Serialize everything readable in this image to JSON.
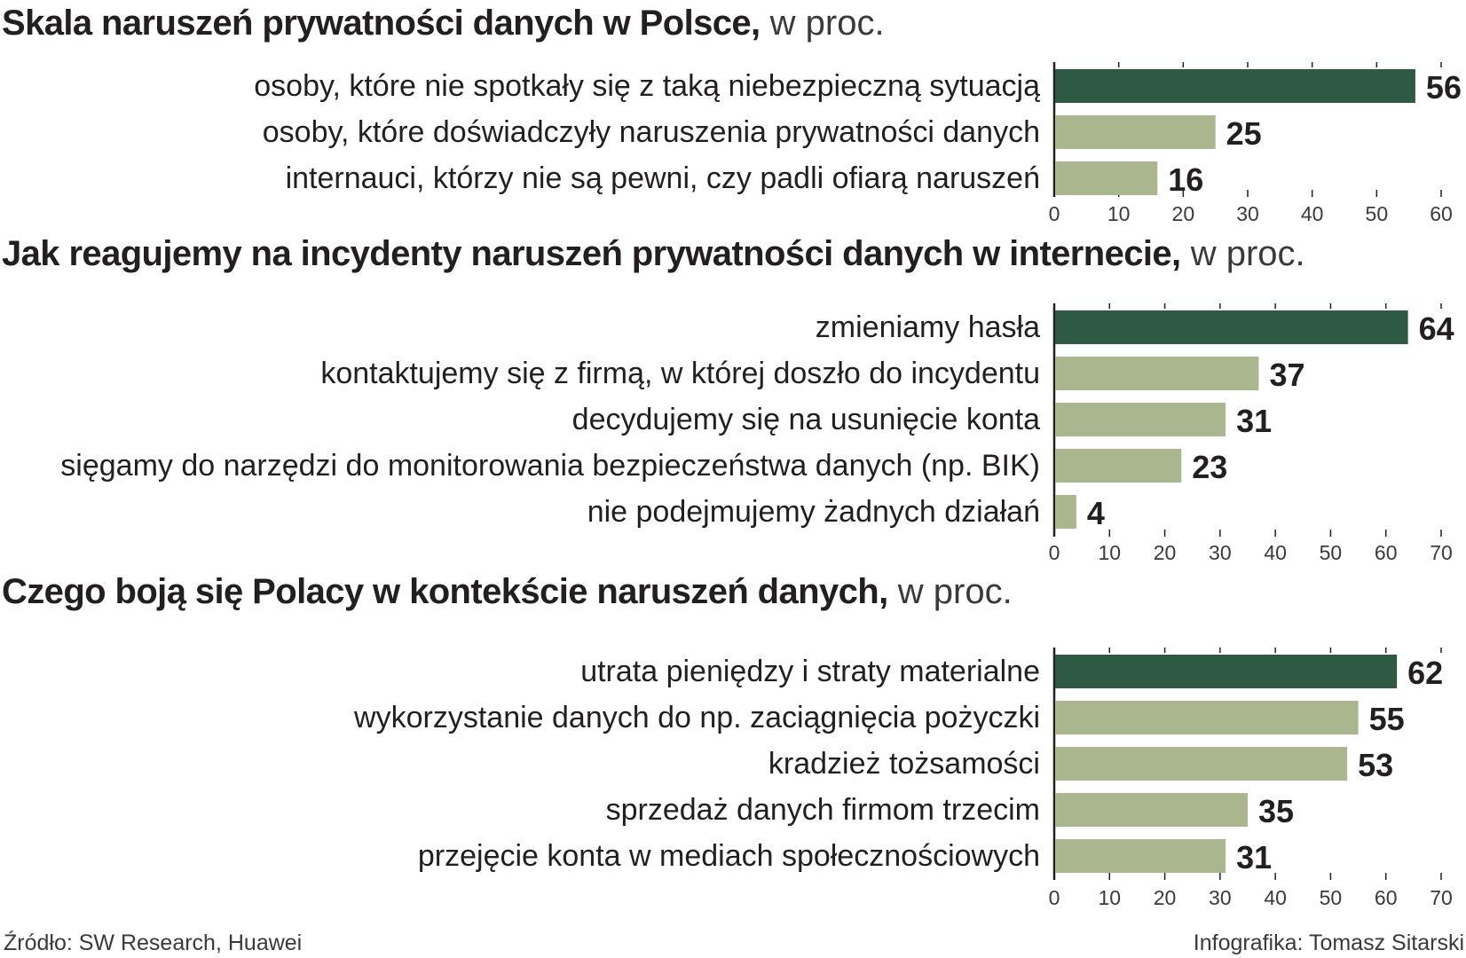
{
  "colors": {
    "highlight": "#2e5a43",
    "bar": "#aab68e",
    "axis": "#231f20",
    "text": "#231f20"
  },
  "chart_data": [
    {
      "type": "bar",
      "orientation": "horizontal",
      "title": "Skala naruszeń prywatności danych w Polsce,",
      "unit": "w proc.",
      "categories": [
        "osoby, które nie spotkały się z taką niebezpieczną sytuacją",
        "osoby, które doświadczyły naruszenia prywatności danych",
        "internauci, którzy nie są pewni, czy padli ofiarą naruszeń"
      ],
      "values": [
        56,
        25,
        16
      ],
      "value_labels": [
        "56",
        "25",
        "16"
      ],
      "xlim": [
        0,
        60
      ],
      "ticks": [
        "0",
        "10",
        "20",
        "30",
        "40",
        "50",
        "60"
      ],
      "highlight_index": 0
    },
    {
      "type": "bar",
      "orientation": "horizontal",
      "title": "Jak reagujemy na incydenty naruszeń prywatności danych w internecie,",
      "unit": "w proc.",
      "categories": [
        "zmieniamy hasła",
        "kontaktujemy się z firmą, w której doszło do incydentu",
        "decydujemy się na usunięcie konta",
        "sięgamy do narzędzi do monitorowania bezpieczeństwa danych (np. BIK)",
        "nie podejmujemy żadnych działań"
      ],
      "values": [
        64,
        37,
        31,
        23,
        4
      ],
      "value_labels": [
        "64",
        "37",
        "31",
        "23",
        "4"
      ],
      "xlim": [
        0,
        70
      ],
      "ticks": [
        "0",
        "10",
        "20",
        "30",
        "40",
        "50",
        "60",
        "70"
      ],
      "highlight_index": 0
    },
    {
      "type": "bar",
      "orientation": "horizontal",
      "title": "Czego boją się Polacy w kontekście naruszeń danych,",
      "unit": "w proc.",
      "categories": [
        "utrata pieniędzy i straty materialne",
        "wykorzystanie danych do np. zaciągnięcia pożyczki",
        "kradzież tożsamości",
        "sprzedaż danych firmom trzecim",
        "przejęcie konta w mediach społecznościowych"
      ],
      "values": [
        62,
        55,
        53,
        35,
        31
      ],
      "value_labels": [
        "62",
        "55",
        "53",
        "35",
        "31"
      ],
      "xlim": [
        0,
        70
      ],
      "ticks": [
        "0",
        "10",
        "20",
        "30",
        "40",
        "50",
        "60",
        "70"
      ],
      "highlight_index": 0
    }
  ],
  "footer": {
    "source": "Źródło: SW Research, Huawei",
    "credit": "Infografika: Tomasz Sitarski"
  }
}
